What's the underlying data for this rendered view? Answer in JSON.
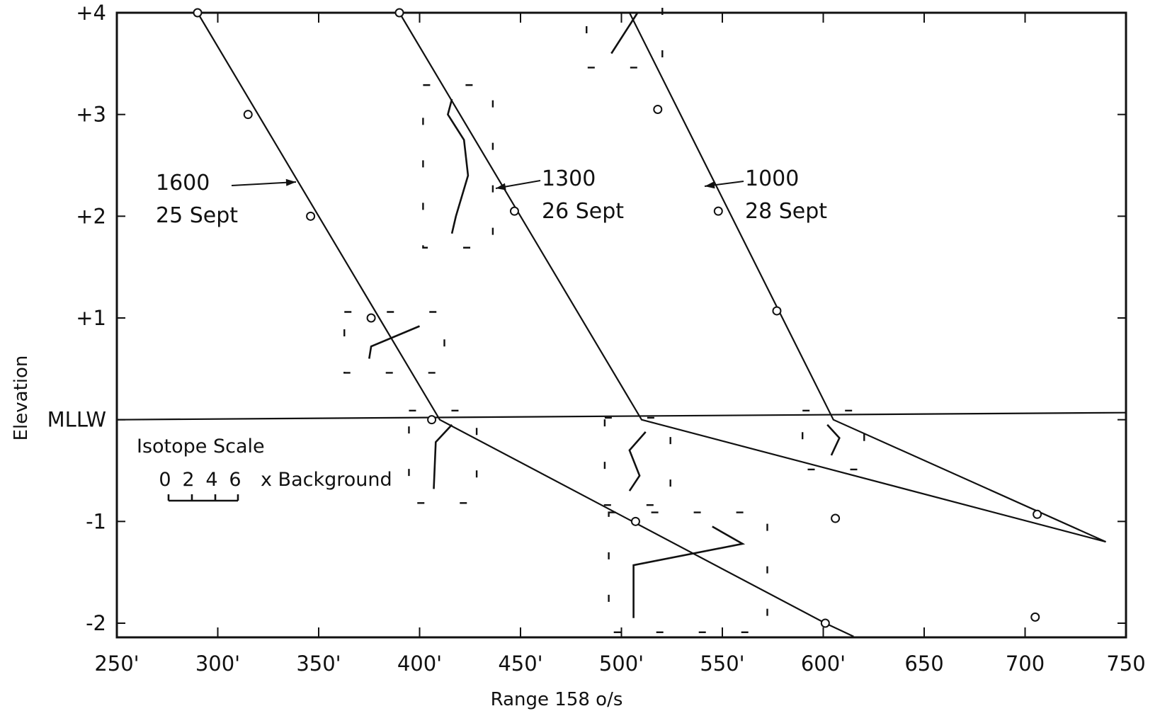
{
  "chart_data": {
    "type": "line",
    "xlabel": "Range 158 o/s",
    "ylabel": "Elevation",
    "xlim": [
      250,
      750
    ],
    "ylim": [
      -2.2,
      4
    ],
    "x_ticks": [
      {
        "value": 250,
        "label": "250'"
      },
      {
        "value": 300,
        "label": "300'"
      },
      {
        "value": 350,
        "label": "350'"
      },
      {
        "value": 400,
        "label": "400'"
      },
      {
        "value": 450,
        "label": "450'"
      },
      {
        "value": 500,
        "label": "500'"
      },
      {
        "value": 550,
        "label": "550'"
      },
      {
        "value": 600,
        "label": "600'"
      },
      {
        "value": 650,
        "label": "650"
      },
      {
        "value": 700,
        "label": "700"
      },
      {
        "value": 750,
        "label": "750"
      }
    ],
    "y_ticks": [
      {
        "value": 4,
        "label": "+4"
      },
      {
        "value": 3,
        "label": "+3"
      },
      {
        "value": 2,
        "label": "+2"
      },
      {
        "value": 1,
        "label": "+1"
      },
      {
        "value": 0,
        "label": "MLLW"
      },
      {
        "value": -1,
        "label": "-1"
      },
      {
        "value": -2,
        "label": "-2"
      }
    ],
    "series": [
      {
        "name": "1600 25 Sept",
        "label_time": "1600",
        "label_date": "25 Sept",
        "line": [
          [
            290,
            4
          ],
          [
            380,
            1
          ],
          [
            410,
            0
          ],
          [
            601,
            -2
          ],
          [
            615,
            -2.13
          ]
        ],
        "points": [
          [
            290,
            4
          ],
          [
            315,
            3
          ],
          [
            346,
            2
          ],
          [
            376,
            1
          ],
          [
            406,
            0
          ],
          [
            507,
            -1
          ],
          [
            601,
            -2
          ]
        ],
        "isotope_profiles": [
          [
            [
              375,
              0.6
            ],
            [
              376,
              0.72
            ],
            [
              400,
              0.92
            ]
          ],
          [
            [
              407,
              -0.68
            ],
            [
              408,
              -0.22
            ],
            [
              416,
              -0.05
            ]
          ],
          [
            [
              506,
              -1.95
            ],
            [
              506,
              -1.43
            ],
            [
              560,
              -1.22
            ],
            [
              545,
              -1.05
            ]
          ]
        ]
      },
      {
        "name": "1300 26 Sept",
        "label_time": "1300",
        "label_date": "26 Sept",
        "line": [
          [
            390,
            4
          ],
          [
            510,
            0
          ],
          [
            740,
            -1.2
          ]
        ],
        "points": [
          [
            390,
            4
          ],
          [
            447,
            2.05
          ],
          [
            606,
            -0.97
          ],
          [
            705,
            -1.94
          ]
        ],
        "isotope_profiles": [
          [
            [
              416,
              1.83
            ],
            [
              418,
              2.0
            ],
            [
              424,
              2.4
            ],
            [
              422,
              2.75
            ],
            [
              414,
              3.0
            ],
            [
              416,
              3.15
            ]
          ]
        ]
      },
      {
        "name": "1000 28 Sept",
        "label_time": "1000",
        "label_date": "28 Sept",
        "line": [
          [
            504,
            4
          ],
          [
            605,
            0
          ],
          [
            740,
            -1.2
          ]
        ],
        "points": [
          [
            518,
            3.05
          ],
          [
            548,
            2.05
          ],
          [
            577,
            1.07
          ],
          [
            706,
            -0.93
          ]
        ],
        "isotope_profiles": [
          [
            [
              504,
              -0.7
            ],
            [
              509,
              -0.55
            ],
            [
              504,
              -0.3
            ],
            [
              512,
              -0.12
            ]
          ],
          [
            [
              604,
              -0.35
            ],
            [
              608,
              -0.18
            ],
            [
              602,
              -0.05
            ]
          ],
          [
            [
              495,
              3.6
            ],
            [
              508,
              4.0
            ]
          ]
        ]
      }
    ],
    "isotope_scale": {
      "title": "Isotope Scale",
      "marks": [
        "0",
        "2",
        "4",
        "6"
      ],
      "suffix": "x Background"
    }
  }
}
